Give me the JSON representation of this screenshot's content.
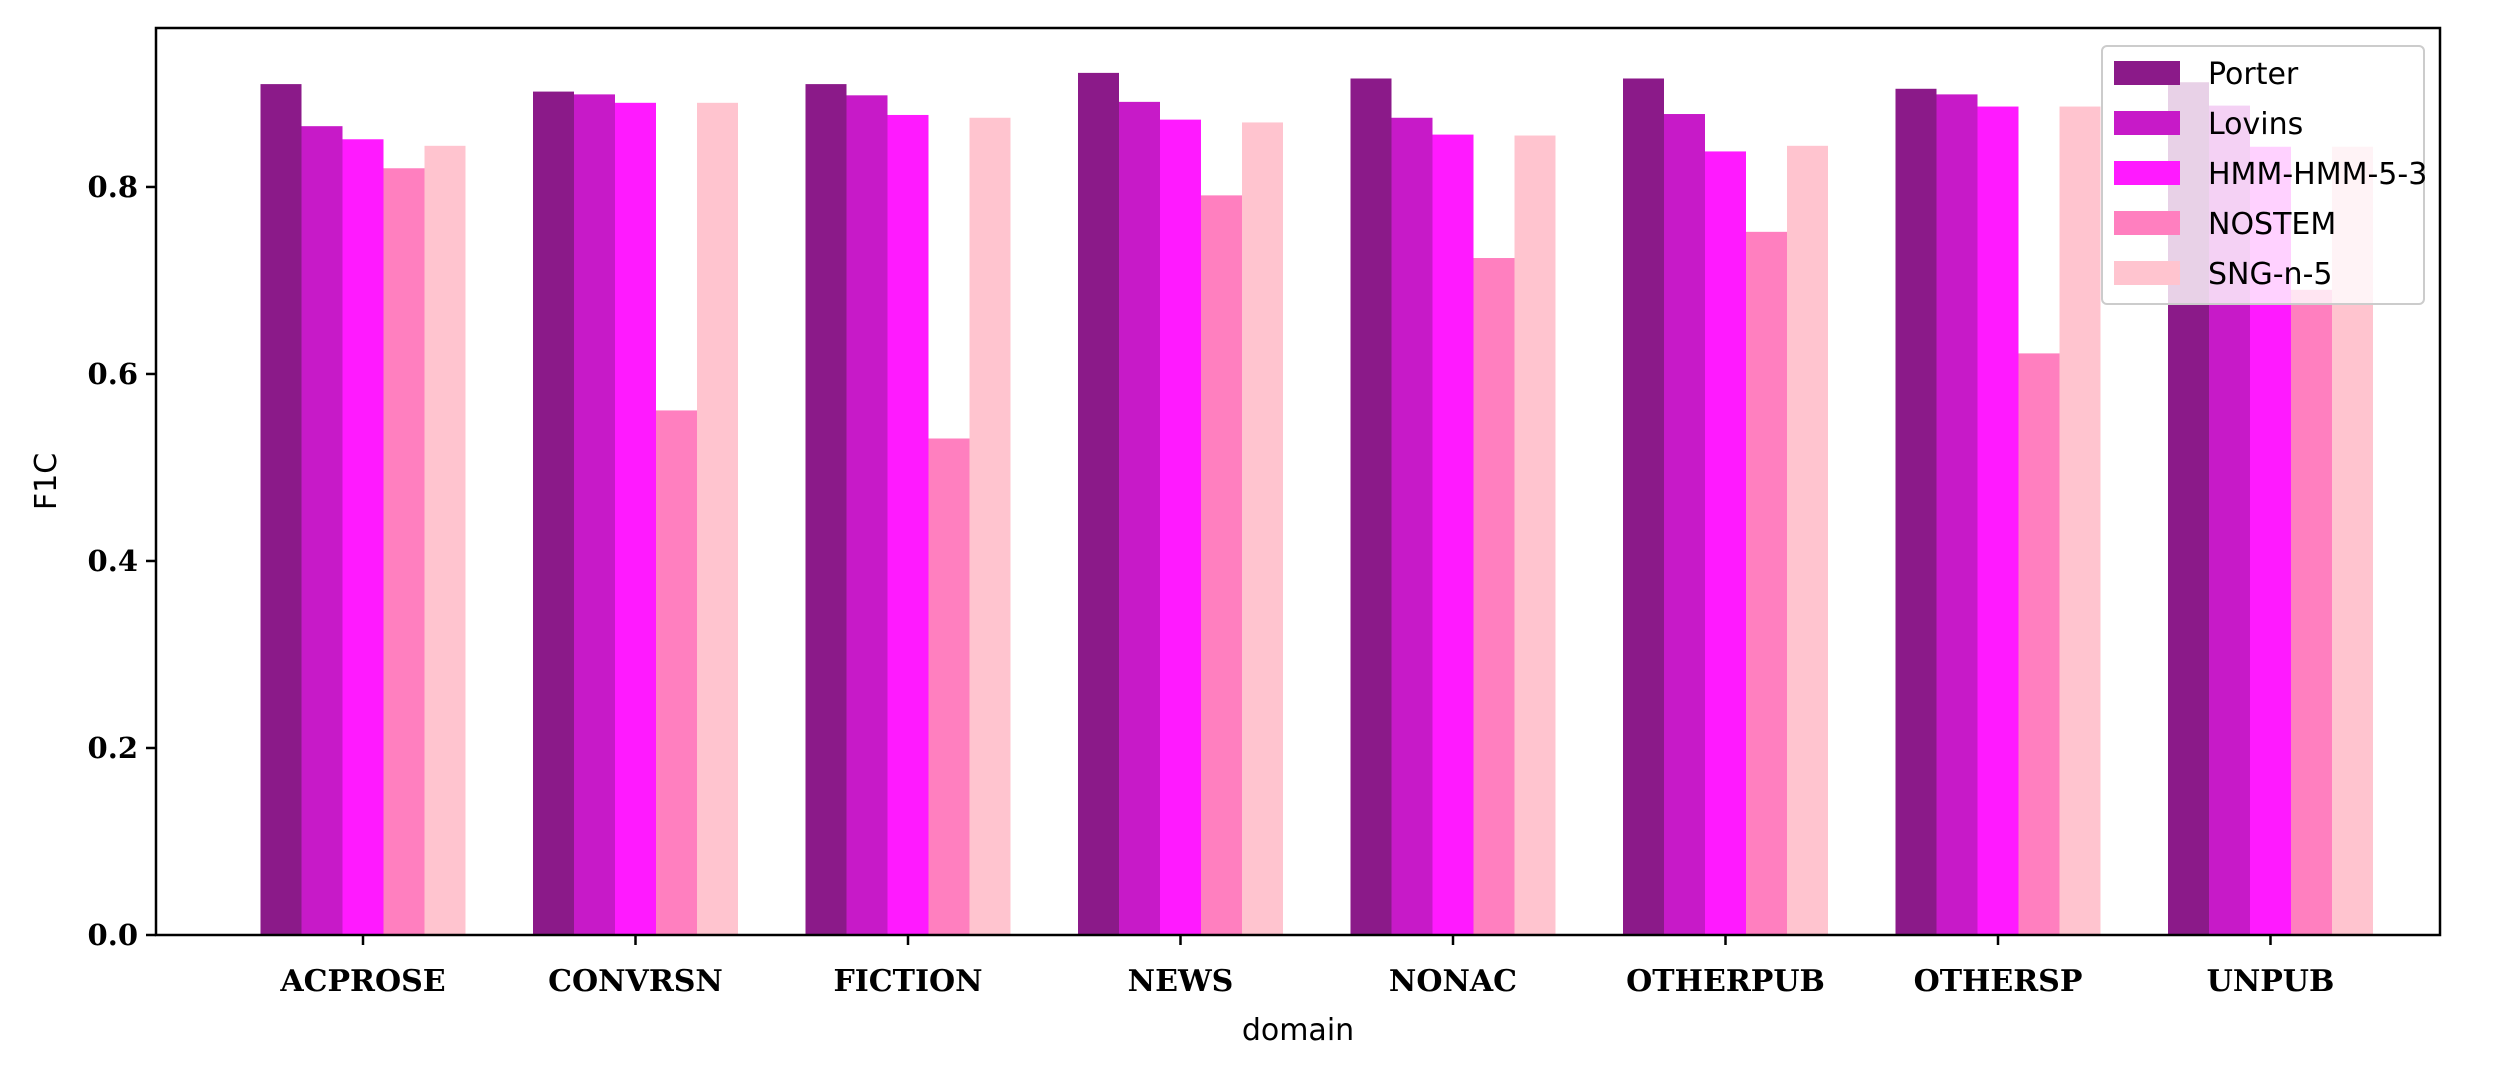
{
  "chart_data": {
    "type": "bar",
    "xlabel": "domain",
    "ylabel": "F1C",
    "ylim": [
      0,
      0.97
    ],
    "yticks": [
      "0.0",
      "0.2",
      "0.4",
      "0.6",
      "0.8"
    ],
    "yticks_values": [
      0.0,
      0.2,
      0.4,
      0.6,
      0.8
    ],
    "grid": false,
    "legend_position": "top-right",
    "categories": [
      "ACPROSE",
      "CONVRSN",
      "FICTION",
      "NEWS",
      "NONAC",
      "OTHERPUB",
      "OTHERSP",
      "UNPUB"
    ],
    "series": [
      {
        "name": "Porter",
        "color": "#8B1A89",
        "values": [
          0.91,
          0.902,
          0.91,
          0.922,
          0.916,
          0.916,
          0.905,
          0.912
        ]
      },
      {
        "name": "Lovins",
        "color": "#C71AC8",
        "values": [
          0.865,
          0.899,
          0.898,
          0.891,
          0.874,
          0.878,
          0.899,
          0.887
        ]
      },
      {
        "name": "HMM-HMM-5-3",
        "color": "#FF1AFF",
        "values": [
          0.851,
          0.89,
          0.877,
          0.872,
          0.856,
          0.838,
          0.886,
          0.843
        ]
      },
      {
        "name": "NOSTEM",
        "color": "#FF7FBF",
        "values": [
          0.82,
          0.561,
          0.531,
          0.791,
          0.724,
          0.752,
          0.622,
          0.69
        ]
      },
      {
        "name": "SNG-n-5",
        "color": "#FFC4CF",
        "values": [
          0.844,
          0.89,
          0.874,
          0.869,
          0.855,
          0.844,
          0.886,
          0.843
        ]
      }
    ]
  }
}
